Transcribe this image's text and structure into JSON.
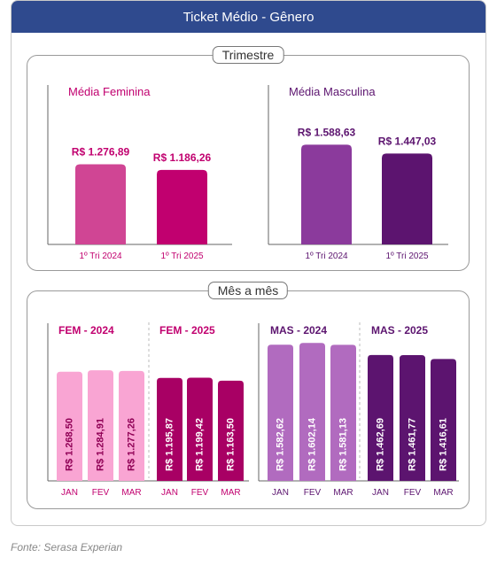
{
  "header": {
    "title": "Ticket Médio - Gênero"
  },
  "source": "Fonte: Serasa Experian",
  "colors": {
    "header_bg": "#2f4a8e",
    "fem_2024": "#d04594",
    "fem_2025": "#c1006f",
    "mas_2024": "#8b3a9c",
    "mas_2025": "#5c146f",
    "fem_m_2024": "#f9a5d3",
    "fem_m_2025": "#a80064",
    "mas_m_2024": "#b16bbf",
    "mas_m_2025": "#5c146f",
    "fem_text": "#c1006f",
    "mas_text": "#5c146f"
  },
  "chart_data": [
    {
      "type": "bar",
      "title": "Trimestre",
      "panels": [
        {
          "title": "Média Feminina",
          "categories": [
            "1º Tri 2024",
            "1º Tri 2025"
          ],
          "values": [
            1276.89,
            1186.26
          ],
          "labels": [
            "R$ 1.276,89",
            "R$ 1.186,26"
          ]
        },
        {
          "title": "Média Masculina",
          "categories": [
            "1º Tri 2024",
            "1º Tri 2025"
          ],
          "values": [
            1588.63,
            1447.03
          ],
          "labels": [
            "R$ 1.588,63",
            "R$ 1.447,03"
          ]
        }
      ]
    },
    {
      "type": "bar",
      "title": "Mês a mês",
      "categories": [
        "JAN",
        "FEV",
        "MAR"
      ],
      "series": [
        {
          "name": "FEM - 2024",
          "values": [
            1268.5,
            1284.91,
            1277.26
          ],
          "labels": [
            "R$ 1.268,50",
            "R$ 1.284,91",
            "R$ 1.277,26"
          ]
        },
        {
          "name": "FEM - 2025",
          "values": [
            1195.87,
            1199.42,
            1163.5
          ],
          "labels": [
            "R$ 1.195,87",
            "R$ 1.199,42",
            "R$ 1.163,50"
          ]
        },
        {
          "name": "MAS - 2024",
          "values": [
            1582.62,
            1602.14,
            1581.13
          ],
          "labels": [
            "R$ 1.582,62",
            "R$ 1.602,14",
            "R$ 1.581,13"
          ]
        },
        {
          "name": "MAS - 2025",
          "values": [
            1462.69,
            1461.77,
            1416.61
          ],
          "labels": [
            "R$ 1.462,69",
            "R$ 1.461,77",
            "R$ 1.416,61"
          ]
        }
      ]
    }
  ]
}
